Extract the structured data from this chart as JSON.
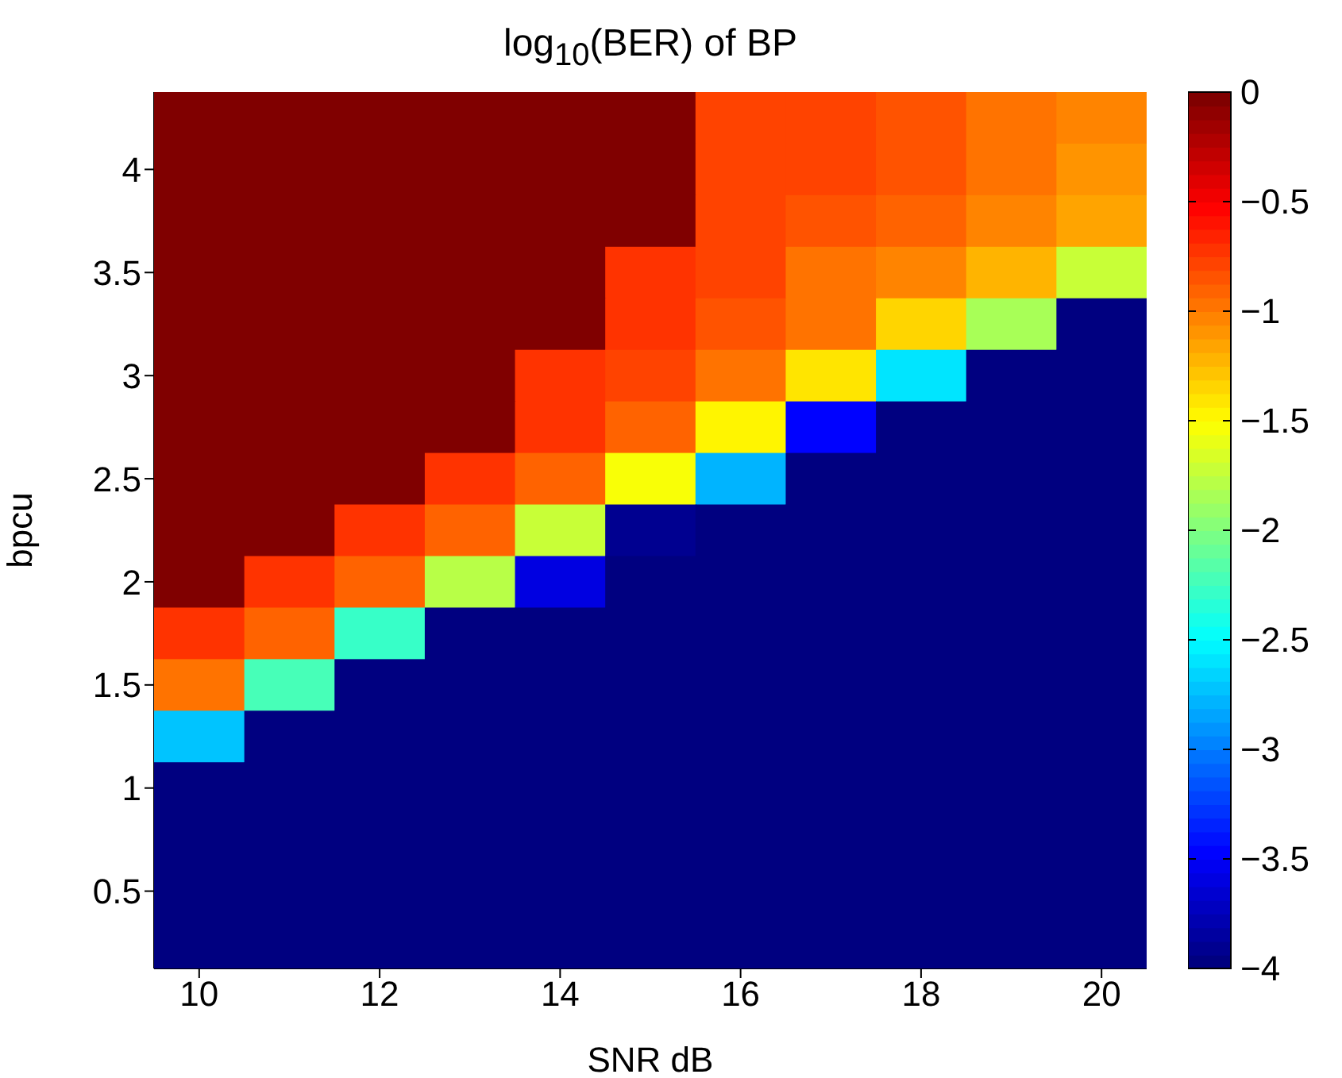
{
  "chart_data": {
    "type": "heatmap",
    "title": "log$_{10}$(BER) of BP",
    "xlabel": "SNR dB",
    "ylabel": "bpcu",
    "categories": [
      "10",
      null,
      "12",
      null,
      "14",
      null,
      "16",
      null,
      "18",
      null,
      "20"
    ],
    "y_categories": [
      null,
      "4",
      null,
      "3.5",
      null,
      "3",
      null,
      "2.5",
      null,
      "2",
      null,
      "1.5",
      null,
      "1",
      null,
      "0.5",
      null
    ],
    "cells": [
      [
        0,
        0,
        0,
        0,
        0,
        0,
        -0.8,
        -0.8,
        -0.85,
        -0.95,
        -1.05
      ],
      [
        0,
        0,
        0,
        0,
        0,
        0,
        -0.8,
        -0.8,
        -0.85,
        -0.95,
        -1.1
      ],
      [
        0,
        0,
        0,
        0,
        0,
        0,
        -0.8,
        -0.85,
        -0.9,
        -1.05,
        -1.15
      ],
      [
        0,
        0,
        0,
        0,
        0,
        -0.7,
        -0.8,
        -0.95,
        -1.05,
        -1.25,
        -1.7
      ],
      [
        0,
        0,
        0,
        0,
        0,
        -0.7,
        -0.85,
        -1,
        -1.35,
        -1.85,
        -4
      ],
      [
        0,
        0,
        0,
        0,
        -0.7,
        -0.8,
        -0.95,
        -1.4,
        -2.6,
        -4,
        -4
      ],
      [
        0,
        0,
        0,
        0,
        -0.75,
        -0.9,
        -1.45,
        -3.5,
        -4,
        -4,
        -4
      ],
      [
        0,
        0,
        0,
        -0.75,
        -0.9,
        -1.55,
        -2.8,
        -4,
        -4,
        -4,
        -4
      ],
      [
        0,
        0,
        -0.75,
        -0.9,
        -1.7,
        -3.9,
        -4,
        -4,
        -4,
        -4,
        -4
      ],
      [
        0,
        -0.7,
        -0.9,
        -1.8,
        -3.6,
        -4,
        -4,
        -4,
        -4,
        -4,
        -4
      ],
      [
        -0.75,
        -0.9,
        -2.3,
        -4,
        -4,
        -4,
        -4,
        -4,
        -4,
        -4,
        -4
      ],
      [
        -0.95,
        -2.2,
        -4,
        -4,
        -4,
        -4,
        -4,
        -4,
        -4,
        -4,
        -4
      ],
      [
        -2.7,
        -4,
        -4,
        -4,
        -4,
        -4,
        -4,
        -4,
        -4,
        -4,
        -4
      ],
      [
        -4,
        -4,
        -4,
        -4,
        -4,
        -4,
        -4,
        -4,
        -4,
        -4,
        -4
      ],
      [
        -4,
        -4,
        -4,
        -4,
        -4,
        -4,
        -4,
        -4,
        -4,
        -4,
        -4
      ],
      [
        -4,
        -4,
        -4,
        -4,
        -4,
        -4,
        -4,
        -4,
        -4,
        -4,
        -4
      ],
      [
        -4,
        -4,
        -4,
        -4,
        -4,
        -4,
        -4,
        -4,
        -4,
        -4,
        -4
      ]
    ],
    "clim": [
      -4,
      0
    ],
    "cticks": [
      0,
      -0.5,
      -1,
      -1.5,
      -2,
      -2.5,
      -3,
      -3.5,
      -4
    ]
  }
}
